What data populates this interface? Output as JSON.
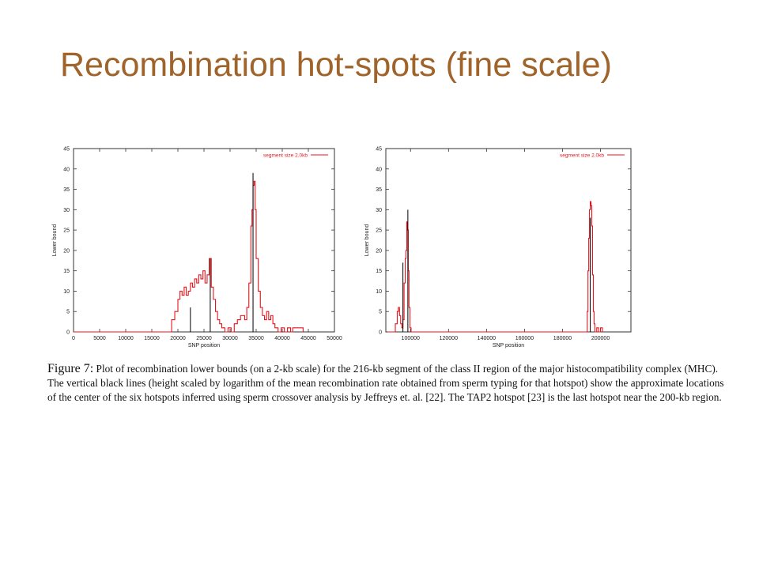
{
  "slide": {
    "title": "Recombination hot-spots (fine scale)"
  },
  "figure": {
    "label": "Figure 7:",
    "caption": "Plot of recombination lower bounds (on a 2-kb scale) for the 216-kb segment of the class II region of the major histocompatibility complex (MHC). The vertical black lines (height scaled by logarithm of the mean recombination rate obtained from sperm typing for that hotspot) show the approximate locations of the center of the six hotspots inferred using sperm crossover analysis by Jeffreys et. al. [22]. The TAP2 hotspot [23] is the last hotspot near the 200-kb region."
  },
  "colors": {
    "series": "#e8141c",
    "hotspot": "#000000",
    "frame": "#333333",
    "title": "#a0632a"
  },
  "chart_data": [
    {
      "type": "line",
      "xlabel": "SNP position",
      "ylabel": "Lower bound",
      "xlim": [
        0,
        50000
      ],
      "ylim": [
        0,
        45
      ],
      "xticks": [
        0,
        5000,
        10000,
        15000,
        20000,
        25000,
        30000,
        35000,
        40000,
        45000,
        50000
      ],
      "yticks": [
        0,
        5,
        10,
        15,
        20,
        25,
        30,
        35,
        40,
        45
      ],
      "legend": {
        "label": "segment size 2.0kb",
        "position": "top-right"
      },
      "series": [
        {
          "name": "segment size 2.0kb",
          "step": true,
          "x": [
            0,
            18800,
            19400,
            20000,
            20400,
            20800,
            21200,
            21600,
            22000,
            22400,
            22800,
            23200,
            23600,
            24000,
            24400,
            24800,
            25200,
            25600,
            26000,
            26400,
            26800,
            27200,
            27600,
            28000,
            28400,
            29000,
            29600,
            30200,
            30800,
            31400,
            32000,
            32800,
            33200,
            33600,
            34000,
            34200,
            34400,
            34600,
            34800,
            35000,
            35400,
            35800,
            36200,
            36600,
            37000,
            37400,
            37800,
            38200,
            38600,
            39200,
            39800,
            40400,
            41000,
            41600,
            42000,
            42400,
            43000,
            44000
          ],
          "y": [
            0,
            3,
            5,
            8,
            10,
            9,
            11,
            9,
            10,
            12,
            11,
            13,
            12,
            14,
            13,
            15,
            12,
            14,
            18,
            11,
            8,
            5,
            3,
            2,
            1,
            0,
            1,
            0,
            2,
            3,
            4,
            3,
            6,
            12,
            26,
            30,
            36,
            37,
            30,
            18,
            10,
            6,
            4,
            3,
            5,
            3,
            4,
            2,
            1,
            0,
            1,
            0,
            1,
            0,
            1,
            1,
            1,
            0
          ]
        }
      ],
      "hotspots": [
        {
          "x": 22400,
          "height": 6
        },
        {
          "x": 26200,
          "height": 18
        },
        {
          "x": 34400,
          "height": 39
        }
      ]
    },
    {
      "type": "line",
      "xlabel": "SNP position",
      "ylabel": "Lower bound",
      "xlim": [
        87000,
        216000
      ],
      "ylim": [
        0,
        45
      ],
      "xticks": [
        100000,
        120000,
        140000,
        160000,
        180000,
        200000
      ],
      "yticks": [
        0,
        5,
        10,
        15,
        20,
        25,
        30,
        35,
        40,
        45
      ],
      "legend": {
        "label": "segment size 2.0kb",
        "position": "top-right"
      },
      "series": [
        {
          "name": "segment size 2.0kb",
          "step": true,
          "x": [
            88000,
            92000,
            93000,
            93600,
            94200,
            94800,
            95400,
            96000,
            96600,
            97200,
            97600,
            98000,
            98400,
            98800,
            99200,
            99700,
            100300,
            101000,
            193000,
            193400,
            193800,
            194200,
            194600,
            195000,
            195400,
            195800,
            196200,
            196600,
            197000,
            198000,
            199000,
            200000,
            201000
          ],
          "y": [
            0,
            2,
            5,
            6,
            4,
            2,
            1,
            3,
            12,
            18,
            20,
            27,
            25,
            15,
            6,
            1,
            0,
            0,
            5,
            15,
            23,
            30,
            32,
            31,
            26,
            14,
            5,
            2,
            0,
            1,
            0,
            1,
            0
          ]
        }
      ],
      "hotspots": [
        {
          "x": 96000,
          "height": 17
        },
        {
          "x": 98600,
          "height": 30
        },
        {
          "x": 194600,
          "height": 28
        }
      ]
    }
  ]
}
